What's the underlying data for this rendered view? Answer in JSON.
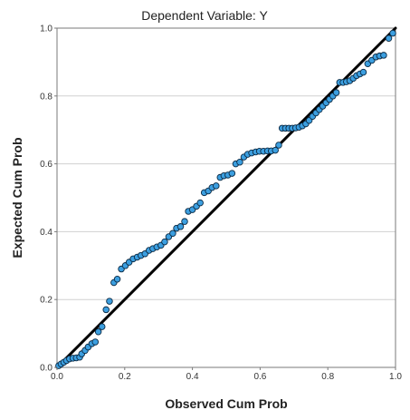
{
  "chart_data": {
    "type": "scatter",
    "title": "Dependent Variable: Y",
    "xlabel": "Observed Cum Prob",
    "ylabel": "Expected Cum Prob",
    "xlim": [
      0,
      1
    ],
    "ylim": [
      0,
      1
    ],
    "x_ticks": [
      "0.0",
      "0.2",
      "0.4",
      "0.6",
      "0.8",
      "1.0"
    ],
    "y_ticks": [
      "0.0",
      "0.2",
      "0.4",
      "0.6",
      "0.8",
      "1.0"
    ],
    "grid": "horizontal",
    "reference_line": {
      "from": [
        0,
        0
      ],
      "to": [
        1,
        1
      ]
    },
    "colors": {
      "marker_fill": "#3c9fe0",
      "marker_stroke": "#0b2a44",
      "reference_line": "#000000",
      "grid": "#d0d0d0",
      "frame": "#7a7a7a"
    },
    "points": [
      [
        0.005,
        0.005
      ],
      [
        0.012,
        0.01
      ],
      [
        0.02,
        0.015
      ],
      [
        0.028,
        0.02
      ],
      [
        0.037,
        0.025
      ],
      [
        0.047,
        0.027
      ],
      [
        0.057,
        0.028
      ],
      [
        0.067,
        0.03
      ],
      [
        0.073,
        0.04
      ],
      [
        0.083,
        0.05
      ],
      [
        0.092,
        0.06
      ],
      [
        0.103,
        0.07
      ],
      [
        0.113,
        0.075
      ],
      [
        0.122,
        0.105
      ],
      [
        0.133,
        0.12
      ],
      [
        0.145,
        0.17
      ],
      [
        0.155,
        0.195
      ],
      [
        0.168,
        0.25
      ],
      [
        0.178,
        0.26
      ],
      [
        0.19,
        0.29
      ],
      [
        0.202,
        0.3
      ],
      [
        0.213,
        0.31
      ],
      [
        0.225,
        0.32
      ],
      [
        0.237,
        0.325
      ],
      [
        0.248,
        0.33
      ],
      [
        0.26,
        0.335
      ],
      [
        0.272,
        0.345
      ],
      [
        0.283,
        0.35
      ],
      [
        0.295,
        0.355
      ],
      [
        0.307,
        0.36
      ],
      [
        0.318,
        0.37
      ],
      [
        0.33,
        0.385
      ],
      [
        0.342,
        0.395
      ],
      [
        0.353,
        0.41
      ],
      [
        0.365,
        0.415
      ],
      [
        0.377,
        0.43
      ],
      [
        0.388,
        0.46
      ],
      [
        0.4,
        0.465
      ],
      [
        0.412,
        0.475
      ],
      [
        0.423,
        0.485
      ],
      [
        0.435,
        0.515
      ],
      [
        0.447,
        0.52
      ],
      [
        0.458,
        0.53
      ],
      [
        0.47,
        0.535
      ],
      [
        0.482,
        0.56
      ],
      [
        0.493,
        0.565
      ],
      [
        0.505,
        0.567
      ],
      [
        0.517,
        0.572
      ],
      [
        0.528,
        0.6
      ],
      [
        0.54,
        0.605
      ],
      [
        0.552,
        0.62
      ],
      [
        0.563,
        0.628
      ],
      [
        0.575,
        0.632
      ],
      [
        0.587,
        0.635
      ],
      [
        0.598,
        0.637
      ],
      [
        0.61,
        0.637
      ],
      [
        0.622,
        0.638
      ],
      [
        0.633,
        0.638
      ],
      [
        0.645,
        0.64
      ],
      [
        0.655,
        0.655
      ],
      [
        0.665,
        0.705
      ],
      [
        0.675,
        0.705
      ],
      [
        0.685,
        0.705
      ],
      [
        0.695,
        0.705
      ],
      [
        0.705,
        0.706
      ],
      [
        0.715,
        0.708
      ],
      [
        0.725,
        0.712
      ],
      [
        0.735,
        0.718
      ],
      [
        0.745,
        0.728
      ],
      [
        0.755,
        0.74
      ],
      [
        0.765,
        0.75
      ],
      [
        0.775,
        0.76
      ],
      [
        0.785,
        0.77
      ],
      [
        0.795,
        0.78
      ],
      [
        0.805,
        0.79
      ],
      [
        0.815,
        0.8
      ],
      [
        0.825,
        0.81
      ],
      [
        0.835,
        0.84
      ],
      [
        0.845,
        0.84
      ],
      [
        0.855,
        0.842
      ],
      [
        0.865,
        0.845
      ],
      [
        0.875,
        0.852
      ],
      [
        0.885,
        0.86
      ],
      [
        0.895,
        0.865
      ],
      [
        0.905,
        0.87
      ],
      [
        0.918,
        0.895
      ],
      [
        0.93,
        0.905
      ],
      [
        0.942,
        0.915
      ],
      [
        0.953,
        0.918
      ],
      [
        0.965,
        0.92
      ],
      [
        0.98,
        0.97
      ],
      [
        0.992,
        0.985
      ]
    ]
  }
}
